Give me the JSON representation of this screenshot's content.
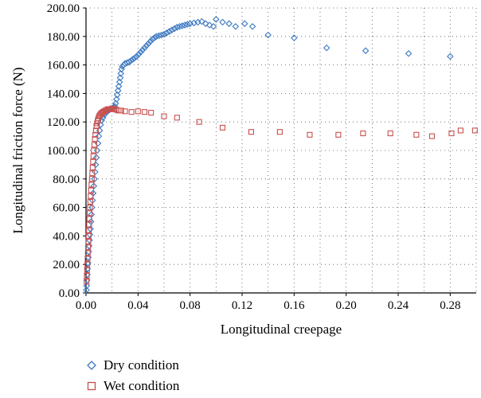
{
  "chart_data": {
    "type": "scatter",
    "title": "",
    "xlabel": "Longitudinal creepage",
    "ylabel": "Longitudinal friction force (N)",
    "xlim": [
      0,
      0.3
    ],
    "ylim": [
      0,
      200
    ],
    "x_ticks": [
      "0.00",
      "0.04",
      "0.08",
      "0.12",
      "0.16",
      "0.20",
      "0.24",
      "0.28"
    ],
    "y_ticks": [
      "0.00",
      "20.00",
      "40.00",
      "60.00",
      "80.00",
      "100.00",
      "120.00",
      "140.00",
      "160.00",
      "180.00",
      "200.00"
    ],
    "grid": "dotted",
    "legend_position": "bottom",
    "series": [
      {
        "name": "Dry condition",
        "marker": "diamond",
        "color": "#3b78c2",
        "points": [
          [
            0.0003,
            2
          ],
          [
            0.0005,
            5
          ],
          [
            0.0008,
            9
          ],
          [
            0.001,
            13
          ],
          [
            0.0012,
            17
          ],
          [
            0.0015,
            21
          ],
          [
            0.0018,
            25
          ],
          [
            0.0021,
            29
          ],
          [
            0.0024,
            33
          ],
          [
            0.0027,
            37
          ],
          [
            0.003,
            41
          ],
          [
            0.0034,
            45
          ],
          [
            0.0038,
            50
          ],
          [
            0.0042,
            55
          ],
          [
            0.0046,
            60
          ],
          [
            0.005,
            65
          ],
          [
            0.0055,
            70
          ],
          [
            0.006,
            75
          ],
          [
            0.0065,
            80
          ],
          [
            0.007,
            85
          ],
          [
            0.0075,
            90
          ],
          [
            0.008,
            95
          ],
          [
            0.0086,
            100
          ],
          [
            0.0092,
            105
          ],
          [
            0.0098,
            110
          ],
          [
            0.0105,
            114
          ],
          [
            0.0112,
            118
          ],
          [
            0.012,
            121
          ],
          [
            0.013,
            123
          ],
          [
            0.014,
            125
          ],
          [
            0.015,
            126
          ],
          [
            0.016,
            127
          ],
          [
            0.017,
            128
          ],
          [
            0.018,
            128.5
          ],
          [
            0.019,
            129
          ],
          [
            0.02,
            129.5
          ],
          [
            0.021,
            130
          ],
          [
            0.022,
            131
          ],
          [
            0.0228,
            133
          ],
          [
            0.0235,
            136
          ],
          [
            0.024,
            139
          ],
          [
            0.0246,
            142
          ],
          [
            0.0252,
            145
          ],
          [
            0.0258,
            148
          ],
          [
            0.0263,
            151
          ],
          [
            0.0268,
            154
          ],
          [
            0.0273,
            157
          ],
          [
            0.028,
            159
          ],
          [
            0.029,
            160
          ],
          [
            0.03,
            161
          ],
          [
            0.0315,
            161.5
          ],
          [
            0.033,
            162
          ],
          [
            0.0345,
            163
          ],
          [
            0.036,
            164
          ],
          [
            0.0375,
            165
          ],
          [
            0.039,
            166
          ],
          [
            0.0405,
            167.5
          ],
          [
            0.042,
            169
          ],
          [
            0.0435,
            170.5
          ],
          [
            0.045,
            172
          ],
          [
            0.0465,
            173.5
          ],
          [
            0.048,
            175
          ],
          [
            0.0495,
            176.5
          ],
          [
            0.051,
            178
          ],
          [
            0.0525,
            179
          ],
          [
            0.054,
            180
          ],
          [
            0.056,
            180.5
          ],
          [
            0.058,
            181
          ],
          [
            0.06,
            181.5
          ],
          [
            0.062,
            182.5
          ],
          [
            0.064,
            183.5
          ],
          [
            0.066,
            184.5
          ],
          [
            0.068,
            185.5
          ],
          [
            0.07,
            186.5
          ],
          [
            0.072,
            187
          ],
          [
            0.074,
            187.5
          ],
          [
            0.076,
            188
          ],
          [
            0.078,
            188.5
          ],
          [
            0.08,
            189
          ],
          [
            0.083,
            189.5
          ],
          [
            0.086,
            190
          ],
          [
            0.089,
            190.5
          ],
          [
            0.092,
            189
          ],
          [
            0.095,
            188
          ],
          [
            0.098,
            187
          ],
          [
            0.1,
            192
          ],
          [
            0.105,
            190
          ],
          [
            0.11,
            189
          ],
          [
            0.115,
            187
          ],
          [
            0.122,
            189
          ],
          [
            0.128,
            187
          ],
          [
            0.14,
            181
          ],
          [
            0.16,
            179
          ],
          [
            0.185,
            172
          ],
          [
            0.215,
            170
          ],
          [
            0.248,
            168
          ],
          [
            0.28,
            166
          ]
        ]
      },
      {
        "name": "Wet condition",
        "marker": "square",
        "color": "#c8504f",
        "points": [
          [
            0.0004,
            8
          ],
          [
            0.0006,
            12
          ],
          [
            0.0008,
            16
          ],
          [
            0.001,
            20
          ],
          [
            0.0012,
            24
          ],
          [
            0.0014,
            28
          ],
          [
            0.0016,
            32
          ],
          [
            0.0018,
            36
          ],
          [
            0.002,
            40
          ],
          [
            0.0022,
            44
          ],
          [
            0.0024,
            48
          ],
          [
            0.0026,
            52
          ],
          [
            0.0028,
            56
          ],
          [
            0.003,
            60
          ],
          [
            0.0033,
            64
          ],
          [
            0.0036,
            68
          ],
          [
            0.0039,
            72
          ],
          [
            0.0042,
            76
          ],
          [
            0.0045,
            80
          ],
          [
            0.0048,
            84
          ],
          [
            0.0051,
            88
          ],
          [
            0.0054,
            92
          ],
          [
            0.0057,
            96
          ],
          [
            0.006,
            100
          ],
          [
            0.0064,
            104
          ],
          [
            0.0068,
            108
          ],
          [
            0.0072,
            111
          ],
          [
            0.0076,
            114
          ],
          [
            0.008,
            117
          ],
          [
            0.0085,
            119
          ],
          [
            0.009,
            121
          ],
          [
            0.0095,
            122.5
          ],
          [
            0.01,
            124
          ],
          [
            0.0108,
            125
          ],
          [
            0.0116,
            126
          ],
          [
            0.0124,
            126.5
          ],
          [
            0.0132,
            127
          ],
          [
            0.014,
            127.5
          ],
          [
            0.015,
            128
          ],
          [
            0.016,
            128.5
          ],
          [
            0.017,
            129
          ],
          [
            0.018,
            129
          ],
          [
            0.019,
            129
          ],
          [
            0.02,
            129.5
          ],
          [
            0.021,
            129
          ],
          [
            0.022,
            129
          ],
          [
            0.0235,
            128.5
          ],
          [
            0.025,
            128
          ],
          [
            0.027,
            128
          ],
          [
            0.03,
            127.5
          ],
          [
            0.035,
            127
          ],
          [
            0.04,
            127.5
          ],
          [
            0.045,
            127
          ],
          [
            0.05,
            126.5
          ],
          [
            0.06,
            124
          ],
          [
            0.07,
            123
          ],
          [
            0.087,
            120
          ],
          [
            0.105,
            116
          ],
          [
            0.127,
            113
          ],
          [
            0.149,
            113
          ],
          [
            0.172,
            111
          ],
          [
            0.194,
            111
          ],
          [
            0.213,
            112
          ],
          [
            0.234,
            112
          ],
          [
            0.254,
            111
          ],
          [
            0.266,
            110
          ],
          [
            0.281,
            112
          ],
          [
            0.288,
            114
          ],
          [
            0.299,
            114
          ]
        ]
      }
    ]
  }
}
